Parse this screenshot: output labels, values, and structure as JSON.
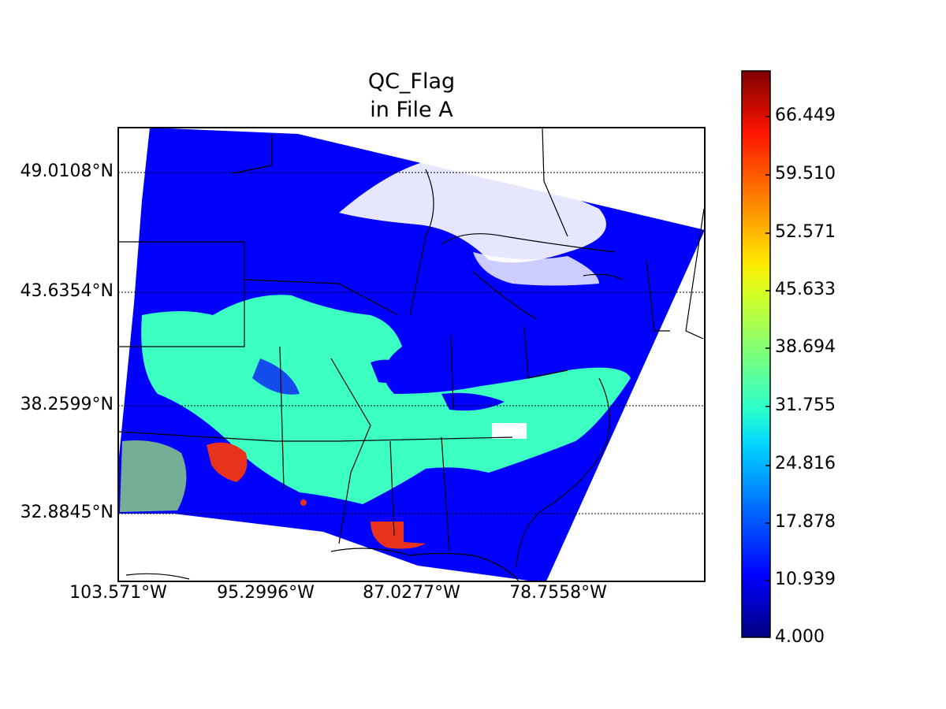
{
  "chart_data": {
    "type": "heatmap",
    "title_lines": [
      "QC_Flag",
      "in File A"
    ],
    "map_projection": "lat/lon map of central and eastern United States",
    "xlabel": "",
    "ylabel": "",
    "x_ticks": [
      "103.571°W",
      "95.2996°W",
      "87.0277°W",
      "78.7558°W"
    ],
    "y_ticks": [
      "49.0108°N",
      "43.6354°N",
      "38.2599°N",
      "32.8845°N"
    ],
    "grid": true,
    "colorbar": {
      "colormap": "jet",
      "range": [
        4.0,
        73.388
      ],
      "ticks": [
        "4.000",
        "10.939",
        "17.878",
        "24.816",
        "31.755",
        "38.694",
        "45.633",
        "52.571",
        "59.510",
        "66.449"
      ]
    },
    "regions": [
      {
        "name": "dominant",
        "approx_value": 10.9,
        "color": "#0000ff"
      },
      {
        "name": "mid-band cloud region",
        "approx_value": 31.8,
        "color": "#3cffc2"
      },
      {
        "name": "high values (texas/louisiana patches)",
        "approx_value": 66.4,
        "color": "#e8321c"
      },
      {
        "name": "no data",
        "approx_value": null,
        "color": "#ffffff"
      }
    ]
  }
}
